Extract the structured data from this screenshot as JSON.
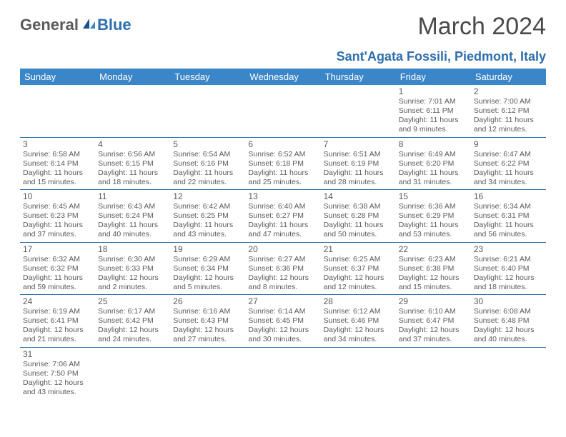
{
  "logo": {
    "text1": "General",
    "text2": "Blue"
  },
  "title": "March 2024",
  "location": "Sant'Agata Fossili, Piedmont, Italy",
  "colors": {
    "header_bg": "#3a86c8",
    "header_text": "#ffffff",
    "accent": "#2f6fad",
    "body_text": "#5a5a5a",
    "border": "#2f6fad",
    "background": "#ffffff"
  },
  "day_headers": [
    "Sunday",
    "Monday",
    "Tuesday",
    "Wednesday",
    "Thursday",
    "Friday",
    "Saturday"
  ],
  "weeks": [
    [
      null,
      null,
      null,
      null,
      null,
      {
        "n": "1",
        "sr": "7:01 AM",
        "ss": "6:11 PM",
        "dl": "11 hours and 9 minutes."
      },
      {
        "n": "2",
        "sr": "7:00 AM",
        "ss": "6:12 PM",
        "dl": "11 hours and 12 minutes."
      }
    ],
    [
      {
        "n": "3",
        "sr": "6:58 AM",
        "ss": "6:14 PM",
        "dl": "11 hours and 15 minutes."
      },
      {
        "n": "4",
        "sr": "6:56 AM",
        "ss": "6:15 PM",
        "dl": "11 hours and 18 minutes."
      },
      {
        "n": "5",
        "sr": "6:54 AM",
        "ss": "6:16 PM",
        "dl": "11 hours and 22 minutes."
      },
      {
        "n": "6",
        "sr": "6:52 AM",
        "ss": "6:18 PM",
        "dl": "11 hours and 25 minutes."
      },
      {
        "n": "7",
        "sr": "6:51 AM",
        "ss": "6:19 PM",
        "dl": "11 hours and 28 minutes."
      },
      {
        "n": "8",
        "sr": "6:49 AM",
        "ss": "6:20 PM",
        "dl": "11 hours and 31 minutes."
      },
      {
        "n": "9",
        "sr": "6:47 AM",
        "ss": "6:22 PM",
        "dl": "11 hours and 34 minutes."
      }
    ],
    [
      {
        "n": "10",
        "sr": "6:45 AM",
        "ss": "6:23 PM",
        "dl": "11 hours and 37 minutes."
      },
      {
        "n": "11",
        "sr": "6:43 AM",
        "ss": "6:24 PM",
        "dl": "11 hours and 40 minutes."
      },
      {
        "n": "12",
        "sr": "6:42 AM",
        "ss": "6:25 PM",
        "dl": "11 hours and 43 minutes."
      },
      {
        "n": "13",
        "sr": "6:40 AM",
        "ss": "6:27 PM",
        "dl": "11 hours and 47 minutes."
      },
      {
        "n": "14",
        "sr": "6:38 AM",
        "ss": "6:28 PM",
        "dl": "11 hours and 50 minutes."
      },
      {
        "n": "15",
        "sr": "6:36 AM",
        "ss": "6:29 PM",
        "dl": "11 hours and 53 minutes."
      },
      {
        "n": "16",
        "sr": "6:34 AM",
        "ss": "6:31 PM",
        "dl": "11 hours and 56 minutes."
      }
    ],
    [
      {
        "n": "17",
        "sr": "6:32 AM",
        "ss": "6:32 PM",
        "dl": "11 hours and 59 minutes."
      },
      {
        "n": "18",
        "sr": "6:30 AM",
        "ss": "6:33 PM",
        "dl": "12 hours and 2 minutes."
      },
      {
        "n": "19",
        "sr": "6:29 AM",
        "ss": "6:34 PM",
        "dl": "12 hours and 5 minutes."
      },
      {
        "n": "20",
        "sr": "6:27 AM",
        "ss": "6:36 PM",
        "dl": "12 hours and 8 minutes."
      },
      {
        "n": "21",
        "sr": "6:25 AM",
        "ss": "6:37 PM",
        "dl": "12 hours and 12 minutes."
      },
      {
        "n": "22",
        "sr": "6:23 AM",
        "ss": "6:38 PM",
        "dl": "12 hours and 15 minutes."
      },
      {
        "n": "23",
        "sr": "6:21 AM",
        "ss": "6:40 PM",
        "dl": "12 hours and 18 minutes."
      }
    ],
    [
      {
        "n": "24",
        "sr": "6:19 AM",
        "ss": "6:41 PM",
        "dl": "12 hours and 21 minutes."
      },
      {
        "n": "25",
        "sr": "6:17 AM",
        "ss": "6:42 PM",
        "dl": "12 hours and 24 minutes."
      },
      {
        "n": "26",
        "sr": "6:16 AM",
        "ss": "6:43 PM",
        "dl": "12 hours and 27 minutes."
      },
      {
        "n": "27",
        "sr": "6:14 AM",
        "ss": "6:45 PM",
        "dl": "12 hours and 30 minutes."
      },
      {
        "n": "28",
        "sr": "6:12 AM",
        "ss": "6:46 PM",
        "dl": "12 hours and 34 minutes."
      },
      {
        "n": "29",
        "sr": "6:10 AM",
        "ss": "6:47 PM",
        "dl": "12 hours and 37 minutes."
      },
      {
        "n": "30",
        "sr": "6:08 AM",
        "ss": "6:48 PM",
        "dl": "12 hours and 40 minutes."
      }
    ],
    [
      {
        "n": "31",
        "sr": "7:06 AM",
        "ss": "7:50 PM",
        "dl": "12 hours and 43 minutes."
      },
      null,
      null,
      null,
      null,
      null,
      null
    ]
  ],
  "labels": {
    "sunrise": "Sunrise:",
    "sunset": "Sunset:",
    "daylight": "Daylight:"
  }
}
